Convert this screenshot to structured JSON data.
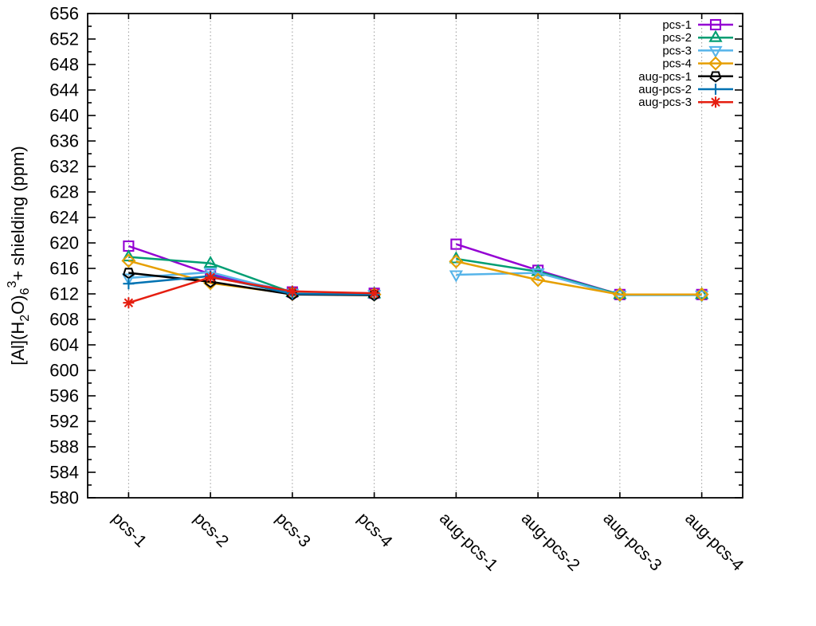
{
  "chart_data": {
    "type": "line",
    "title": "",
    "ylabel_text": "[Al](H2O)6 3+ shielding (ppm)",
    "ylabel_parts": [
      {
        "t": "[Al](H",
        "style": "normal"
      },
      {
        "t": "2",
        "style": "sub"
      },
      {
        "t": "O)",
        "style": "normal"
      },
      {
        "t": "6",
        "style": "sub"
      },
      {
        "t": "3",
        "style": "sup"
      },
      {
        "t": "+",
        "style": "normal"
      },
      {
        "t": " shielding (ppm)",
        "style": "normal"
      }
    ],
    "xlabel": "",
    "categories": [
      "pcs-1",
      "pcs-2",
      "pcs-3",
      "pcs-4",
      "aug-pcs-1",
      "aug-pcs-2",
      "aug-pcs-3",
      "aug-pcs-4"
    ],
    "ylim": [
      580,
      656
    ],
    "ytick_step": 4,
    "ytick_minor_step": 2,
    "yticks": [
      580,
      584,
      588,
      592,
      596,
      600,
      604,
      608,
      612,
      616,
      620,
      624,
      628,
      632,
      636,
      640,
      644,
      648,
      652,
      656
    ],
    "grid": "vertical-dotted-at-xticks",
    "grid_color": "#9a9a9a",
    "legend_position": "top-right-inside",
    "line_break_after_index": 3,
    "series": [
      {
        "name": "pcs-1",
        "color": "#9400d3",
        "marker": "square",
        "values": [
          619.5,
          615.1,
          612.3,
          612.1,
          619.8,
          615.7,
          611.9,
          611.9
        ]
      },
      {
        "name": "pcs-2",
        "color": "#009e73",
        "marker": "triangle-up",
        "values": [
          617.8,
          616.8,
          612.2,
          612.0,
          617.5,
          615.5,
          611.9,
          611.9
        ]
      },
      {
        "name": "pcs-3",
        "color": "#56b4e9",
        "marker": "triangle-down",
        "values": [
          614.5,
          615.4,
          612.1,
          611.9,
          615.0,
          615.3,
          611.8,
          611.8
        ]
      },
      {
        "name": "pcs-4",
        "color": "#e69f00",
        "marker": "diamond",
        "values": [
          617.2,
          613.7,
          612.0,
          611.9,
          617.1,
          614.2,
          611.9,
          611.9
        ]
      },
      {
        "name": "aug-pcs-1",
        "color": "#000000",
        "marker": "pentagon",
        "values": [
          615.3,
          613.9,
          611.9,
          611.8,
          null,
          null,
          null,
          null
        ]
      },
      {
        "name": "aug-pcs-2",
        "color": "#0072b2",
        "marker": "plus",
        "values": [
          613.6,
          614.8,
          612.0,
          611.9,
          null,
          null,
          null,
          null
        ]
      },
      {
        "name": "aug-pcs-3",
        "color": "#e51e10",
        "marker": "asterisk",
        "values": [
          610.6,
          614.6,
          612.4,
          612.1,
          null,
          null,
          null,
          null
        ]
      }
    ]
  }
}
